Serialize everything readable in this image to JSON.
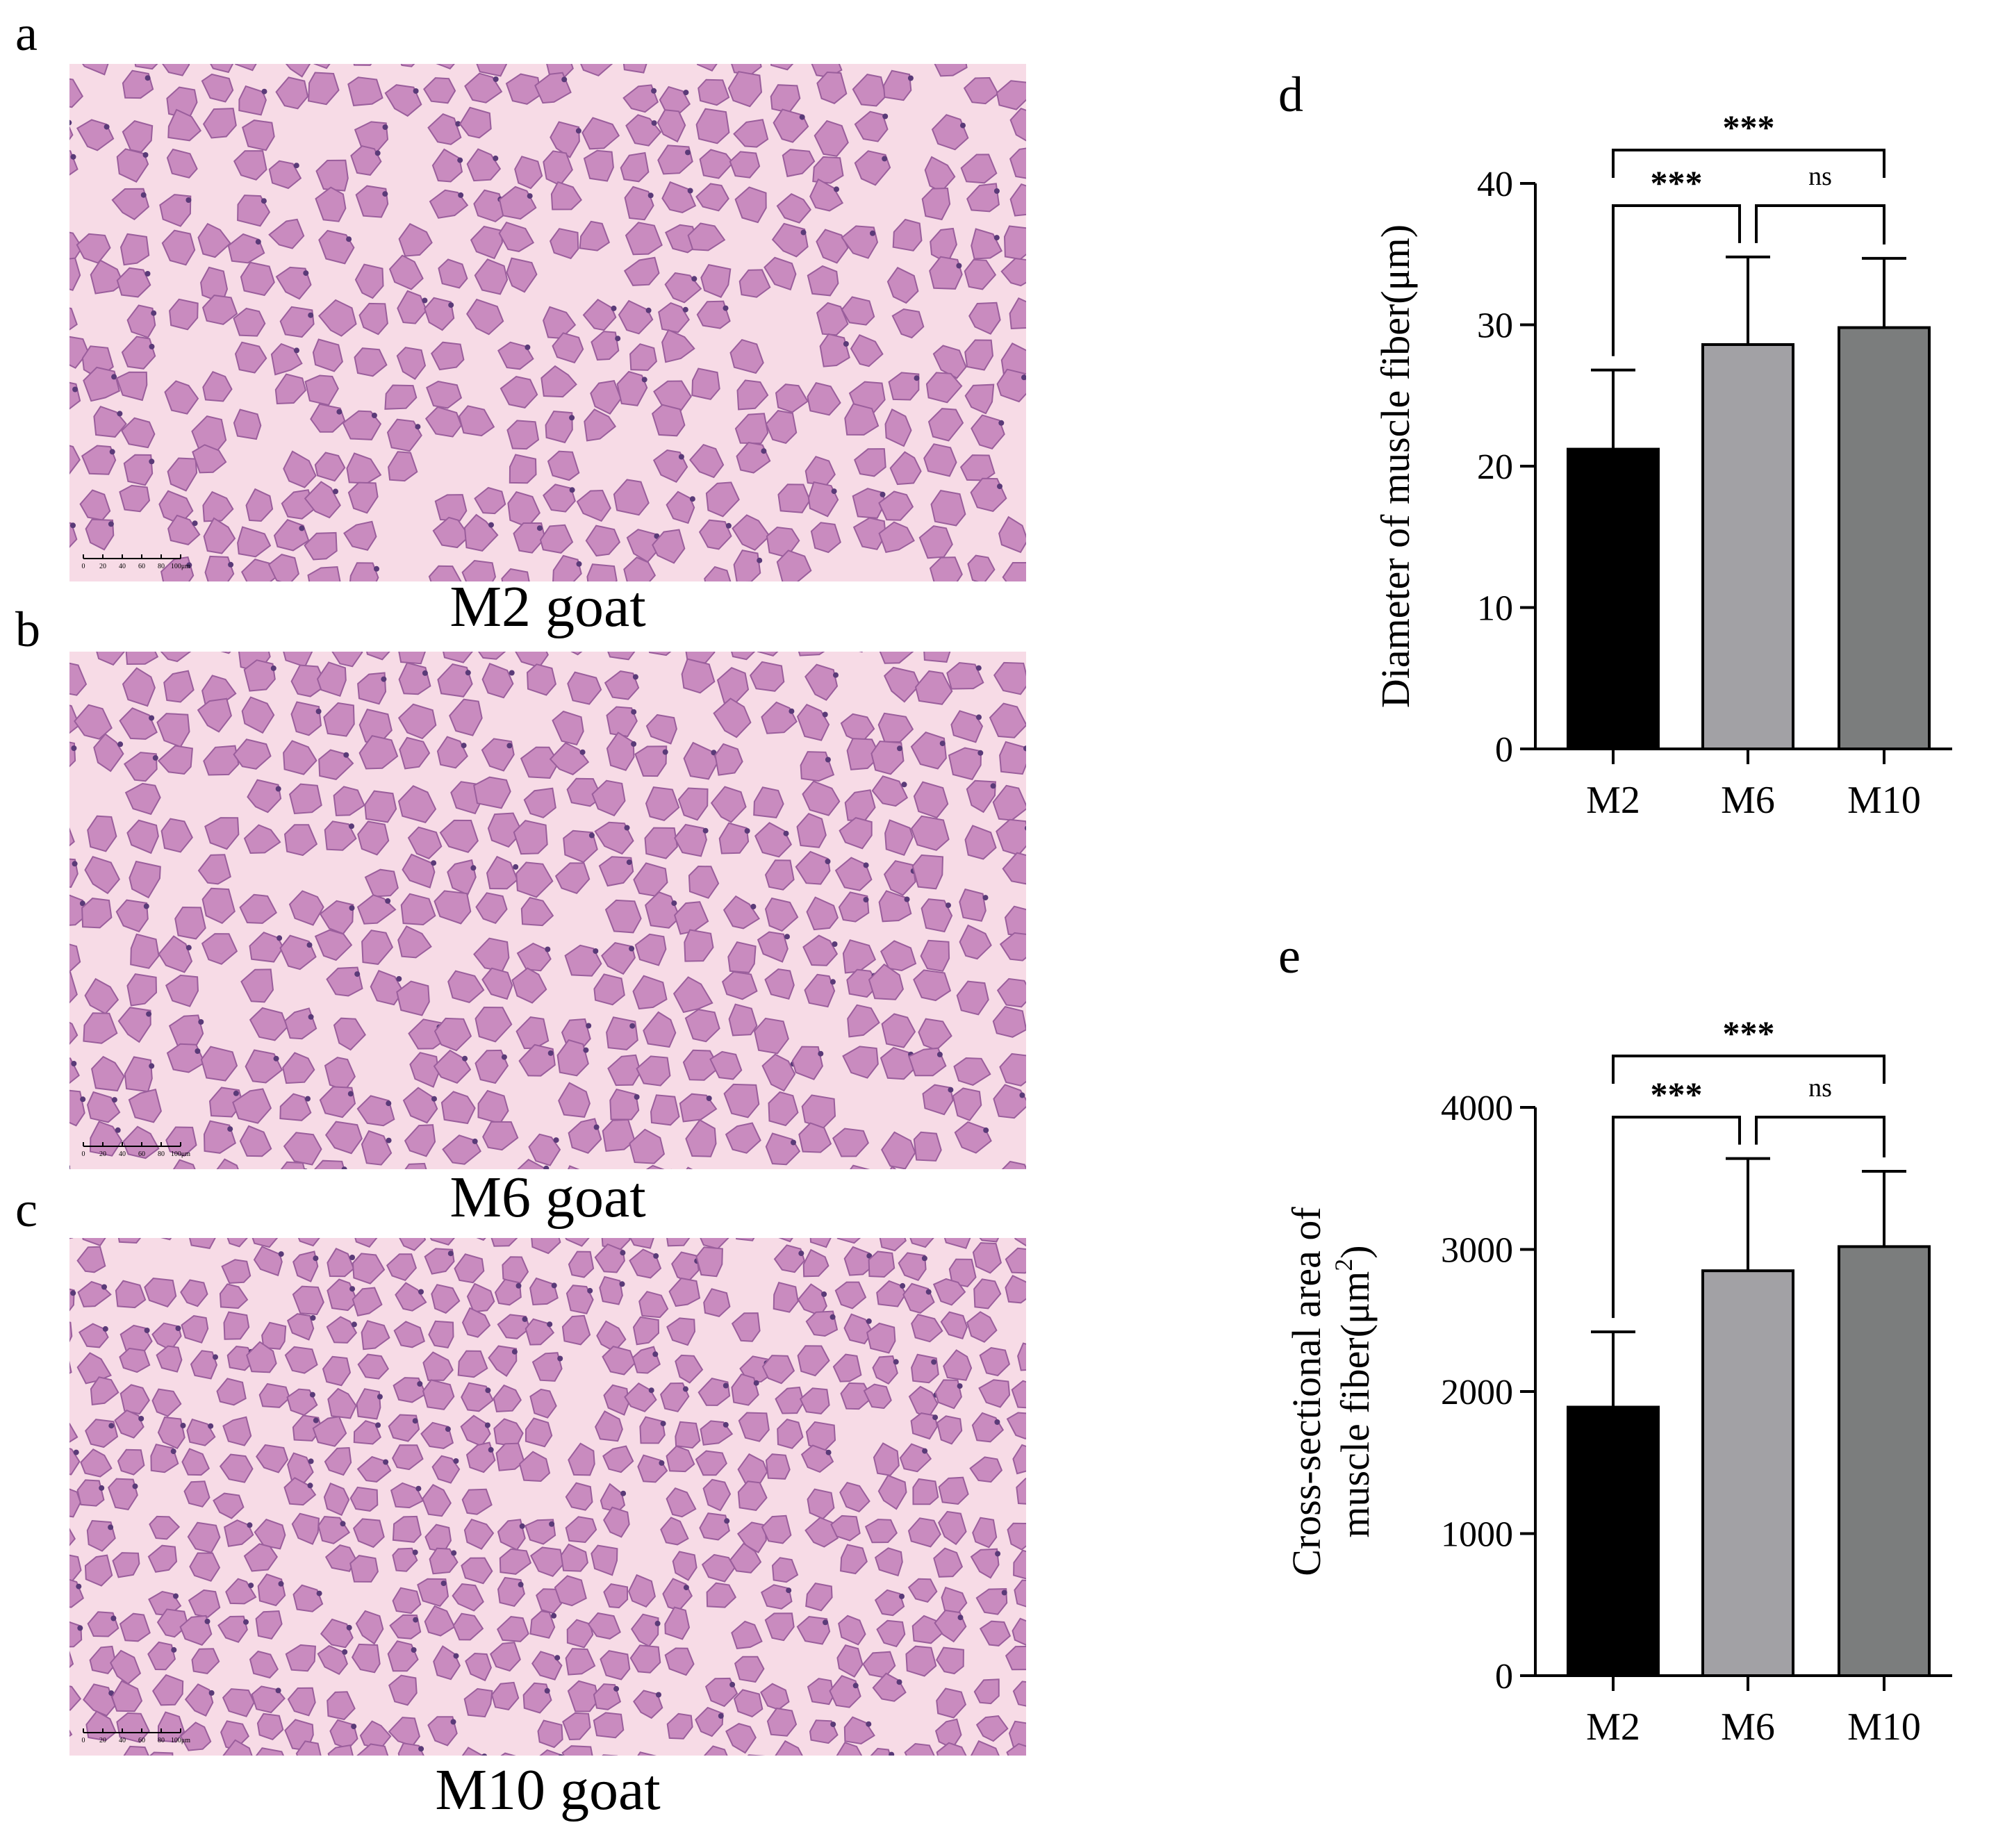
{
  "panels": {
    "a": {
      "letter": "a",
      "caption": "M2 goat",
      "scale_ticks": [
        "0",
        "20",
        "40",
        "60",
        "80",
        "100μm"
      ]
    },
    "b": {
      "letter": "b",
      "caption": "M6 goat",
      "scale_ticks": [
        "0",
        "20",
        "40",
        "60",
        "80",
        "100μm"
      ]
    },
    "c": {
      "letter": "c",
      "caption": "M10 goat",
      "scale_ticks": [
        "0",
        "20",
        "40",
        "60",
        "80",
        "100μm"
      ]
    }
  },
  "colors": {
    "M2": "#000000",
    "M6": "#a2a1a5",
    "M10": "#7b7d7d",
    "tissue_bg": "#f7dbe6",
    "fiber_fill": "#c98bbf",
    "fiber_edge": "#9a5e9c"
  },
  "chart_data": [
    {
      "id": "d",
      "type": "bar",
      "panel_letter": "d",
      "categories": [
        "M2",
        "M6",
        "M10"
      ],
      "values": [
        21.2,
        28.6,
        29.8
      ],
      "error": [
        5.6,
        6.2,
        4.9
      ],
      "ylabel_lines": [
        "Diameter of muscle fiber(μm)"
      ],
      "ylim": [
        0,
        40
      ],
      "yticks": [
        0,
        10,
        20,
        30,
        40
      ],
      "ytick_labels": [
        "0",
        "10",
        "20",
        "30",
        "40"
      ],
      "significance": [
        {
          "from": "M2",
          "to": "M6",
          "label": "***"
        },
        {
          "from": "M6",
          "to": "M10",
          "label": "ns"
        },
        {
          "from": "M2",
          "to": "M10",
          "label": "***"
        }
      ]
    },
    {
      "id": "e",
      "type": "bar",
      "panel_letter": "e",
      "categories": [
        "M2",
        "M6",
        "M10"
      ],
      "values": [
        1890,
        2850,
        3020
      ],
      "error": [
        530,
        790,
        530
      ],
      "ylabel_lines": [
        "Cross-sectional area of",
        "muscle fiber(μm",
        "2",
        ")"
      ],
      "ylim": [
        0,
        4000
      ],
      "yticks": [
        0,
        1000,
        2000,
        3000,
        4000
      ],
      "ytick_labels": [
        "0",
        "1000",
        "2000",
        "3000",
        "4000"
      ],
      "significance": [
        {
          "from": "M2",
          "to": "M6",
          "label": "***"
        },
        {
          "from": "M6",
          "to": "M10",
          "label": "ns"
        },
        {
          "from": "M2",
          "to": "M10",
          "label": "***"
        }
      ]
    }
  ]
}
